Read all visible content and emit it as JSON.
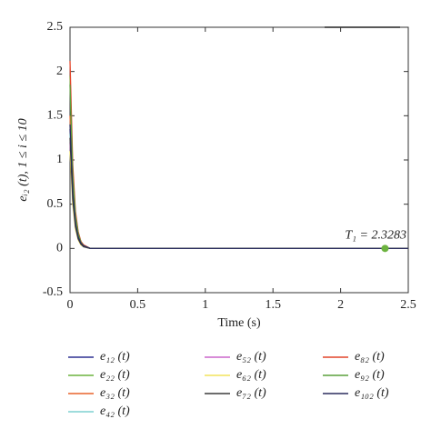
{
  "chart_data": {
    "type": "line",
    "ylabel": "eᵢ₂ (t), 1 ≤ i ≤ 10",
    "xlabel": "Time (s)",
    "x": [
      0,
      0.02,
      0.04,
      0.06,
      0.08,
      0.1,
      0.15,
      2.5
    ],
    "series": [
      {
        "name": "e₁₂ (t)",
        "color": "#2e3192",
        "values": [
          1.35,
          0.6,
          0.27,
          0.12,
          0.05,
          0.02,
          0,
          0
        ]
      },
      {
        "name": "e₂₂ (t)",
        "color": "#6cb33f",
        "values": [
          1.95,
          0.88,
          0.39,
          0.18,
          0.08,
          0.03,
          0,
          0
        ]
      },
      {
        "name": "e₃₂ (t)",
        "color": "#e8642c",
        "values": [
          1.5,
          0.68,
          0.3,
          0.14,
          0.06,
          0.03,
          0,
          0
        ]
      },
      {
        "name": "e₄₂ (t)",
        "color": "#7fd0d0",
        "values": [
          1.3,
          0.58,
          0.26,
          0.12,
          0.05,
          0.02,
          0,
          0
        ]
      },
      {
        "name": "e₅₂ (t)",
        "color": "#cc66cc",
        "values": [
          1.2,
          0.54,
          0.24,
          0.11,
          0.05,
          0.02,
          0,
          0
        ]
      },
      {
        "name": "e₆₂ (t)",
        "color": "#f2e35c",
        "values": [
          1.1,
          0.5,
          0.22,
          0.1,
          0.04,
          0.02,
          0,
          0
        ]
      },
      {
        "name": "e₇₂ (t)",
        "color": "#3c3c3c",
        "values": [
          1.25,
          0.56,
          0.25,
          0.11,
          0.05,
          0.02,
          0,
          0
        ]
      },
      {
        "name": "e₈₂ (t)",
        "color": "#e2452a",
        "values": [
          2.12,
          0.95,
          0.42,
          0.19,
          0.08,
          0.04,
          0,
          0
        ]
      },
      {
        "name": "e₉₂ (t)",
        "color": "#5aa03c",
        "values": [
          1.85,
          0.83,
          0.37,
          0.17,
          0.07,
          0.03,
          0,
          0
        ]
      },
      {
        "name": "e₁₀₂ (t)",
        "color": "#2b2d5e",
        "values": [
          1.4,
          0.63,
          0.28,
          0.13,
          0.06,
          0.03,
          0,
          0
        ]
      }
    ],
    "annotation": {
      "text": "T₁ = 2.3283",
      "x": 2.3283,
      "y": 0,
      "color": "#6cb33f"
    },
    "xlim": [
      0,
      2.5
    ],
    "xticks": [
      0,
      0.5,
      1,
      1.5,
      2,
      2.5
    ],
    "ylim": [
      -0.5,
      2.5
    ],
    "yticks": [
      -0.5,
      0,
      0.5,
      1,
      1.5,
      2,
      2.5
    ]
  }
}
